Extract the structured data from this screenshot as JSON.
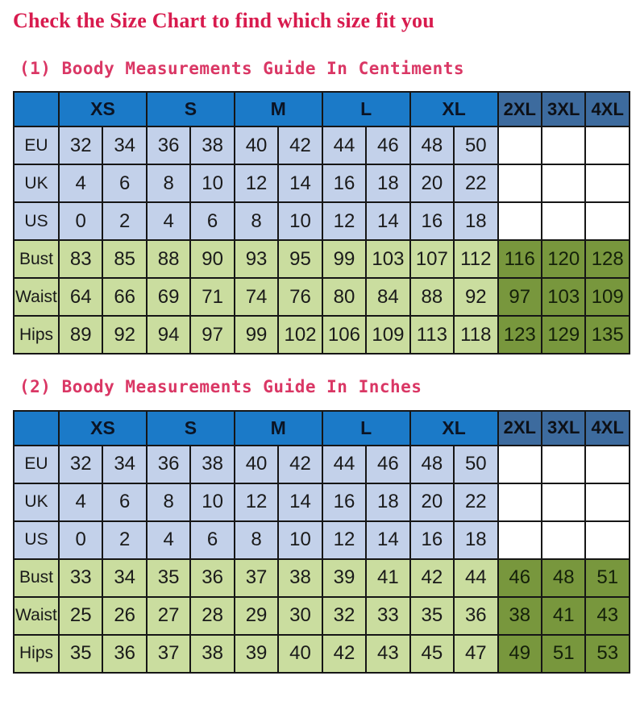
{
  "page": {
    "title": "Check the Size Chart to find which size fit you"
  },
  "sections": [
    {
      "heading": "(1) Boody Measurements Guide In Centiments"
    },
    {
      "heading": "(2) Boody Measurements Guide In Inches"
    }
  ],
  "colors": {
    "title_text": "#d81b4e",
    "heading_text": "#da3765",
    "header_blue": "#1b7ac8",
    "header_extended_blue": "#3d6b9e",
    "row_light_blue": "#c3d1ea",
    "row_light_green": "#cadd9f",
    "row_dark_green": "#78973d",
    "grid_border": "#161616"
  },
  "chart_data": [
    {
      "type": "table",
      "name": "size-table-centimeters",
      "title": "Boody Measurements Guide In Centiments",
      "unit": "cm",
      "extended_from": 10,
      "header_groups": [
        {
          "label": "",
          "span": 1,
          "kind": "corner"
        },
        {
          "label": "XS",
          "span": 2,
          "kind": "main"
        },
        {
          "label": "S",
          "span": 2,
          "kind": "main"
        },
        {
          "label": "M",
          "span": 2,
          "kind": "main"
        },
        {
          "label": "L",
          "span": 2,
          "kind": "main"
        },
        {
          "label": "XL",
          "span": 2,
          "kind": "main"
        },
        {
          "label": "2XL",
          "span": 1,
          "kind": "ext"
        },
        {
          "label": "3XL",
          "span": 1,
          "kind": "ext"
        },
        {
          "label": "4XL",
          "span": 1,
          "kind": "ext"
        }
      ],
      "rows": [
        {
          "label": "EU",
          "style": "blue",
          "values": [
            "32",
            "34",
            "36",
            "38",
            "40",
            "42",
            "44",
            "46",
            "48",
            "50",
            "",
            "",
            ""
          ]
        },
        {
          "label": "UK",
          "style": "blue",
          "values": [
            "4",
            "6",
            "8",
            "10",
            "12",
            "14",
            "16",
            "18",
            "20",
            "22",
            "",
            "",
            ""
          ]
        },
        {
          "label": "US",
          "style": "blue",
          "values": [
            "0",
            "2",
            "4",
            "6",
            "8",
            "10",
            "12",
            "14",
            "16",
            "18",
            "",
            "",
            ""
          ]
        },
        {
          "label": "Bust",
          "style": "green",
          "values": [
            "83",
            "85",
            "88",
            "90",
            "93",
            "95",
            "99",
            "103",
            "107",
            "112",
            "116",
            "120",
            "128"
          ]
        },
        {
          "label": "Waist",
          "style": "green",
          "values": [
            "64",
            "66",
            "69",
            "71",
            "74",
            "76",
            "80",
            "84",
            "88",
            "92",
            "97",
            "103",
            "109"
          ]
        },
        {
          "label": "Hips",
          "style": "green",
          "values": [
            "89",
            "92",
            "94",
            "97",
            "99",
            "102",
            "106",
            "109",
            "113",
            "118",
            "123",
            "129",
            "135"
          ]
        }
      ]
    },
    {
      "type": "table",
      "name": "size-table-inches",
      "title": "Boody Measurements Guide In Inches",
      "unit": "inches",
      "extended_from": 10,
      "header_groups": [
        {
          "label": "",
          "span": 1,
          "kind": "corner"
        },
        {
          "label": "XS",
          "span": 2,
          "kind": "main"
        },
        {
          "label": "S",
          "span": 2,
          "kind": "main"
        },
        {
          "label": "M",
          "span": 2,
          "kind": "main"
        },
        {
          "label": "L",
          "span": 2,
          "kind": "main"
        },
        {
          "label": "XL",
          "span": 2,
          "kind": "main"
        },
        {
          "label": "2XL",
          "span": 1,
          "kind": "ext"
        },
        {
          "label": "3XL",
          "span": 1,
          "kind": "ext"
        },
        {
          "label": "4XL",
          "span": 1,
          "kind": "ext"
        }
      ],
      "rows": [
        {
          "label": "EU",
          "style": "blue",
          "values": [
            "32",
            "34",
            "36",
            "38",
            "40",
            "42",
            "44",
            "46",
            "48",
            "50",
            "",
            "",
            ""
          ]
        },
        {
          "label": "UK",
          "style": "blue",
          "values": [
            "4",
            "6",
            "8",
            "10",
            "12",
            "14",
            "16",
            "18",
            "20",
            "22",
            "",
            "",
            ""
          ]
        },
        {
          "label": "US",
          "style": "blue",
          "values": [
            "0",
            "2",
            "4",
            "6",
            "8",
            "10",
            "12",
            "14",
            "16",
            "18",
            "",
            "",
            ""
          ]
        },
        {
          "label": "Bust",
          "style": "green",
          "values": [
            "33",
            "34",
            "35",
            "36",
            "37",
            "38",
            "39",
            "41",
            "42",
            "44",
            "46",
            "48",
            "51"
          ]
        },
        {
          "label": "Waist",
          "style": "green",
          "values": [
            "25",
            "26",
            "27",
            "28",
            "29",
            "30",
            "32",
            "33",
            "35",
            "36",
            "38",
            "41",
            "43"
          ]
        },
        {
          "label": "Hips",
          "style": "green",
          "values": [
            "35",
            "36",
            "37",
            "38",
            "39",
            "40",
            "42",
            "43",
            "45",
            "47",
            "49",
            "51",
            "53"
          ]
        }
      ]
    }
  ]
}
